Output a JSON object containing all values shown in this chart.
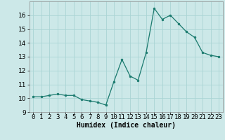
{
  "x": [
    0,
    1,
    2,
    3,
    4,
    5,
    6,
    7,
    8,
    9,
    10,
    11,
    12,
    13,
    14,
    15,
    16,
    17,
    18,
    19,
    20,
    21,
    22,
    23
  ],
  "y": [
    10.1,
    10.1,
    10.2,
    10.3,
    10.2,
    10.2,
    9.9,
    9.8,
    9.7,
    9.5,
    11.2,
    12.8,
    11.6,
    11.3,
    13.3,
    16.5,
    15.7,
    16.0,
    15.4,
    14.8,
    14.4,
    13.3,
    13.1,
    13.0
  ],
  "xlabel": "Humidex (Indice chaleur)",
  "xlim": [
    -0.5,
    23.5
  ],
  "ylim": [
    9.0,
    17.0
  ],
  "yticks": [
    9,
    10,
    11,
    12,
    13,
    14,
    15,
    16
  ],
  "xticks": [
    0,
    1,
    2,
    3,
    4,
    5,
    6,
    7,
    8,
    9,
    10,
    11,
    12,
    13,
    14,
    15,
    16,
    17,
    18,
    19,
    20,
    21,
    22,
    23
  ],
  "line_color": "#1a7a6e",
  "marker_color": "#1a7a6e",
  "bg_color": "#cce8e8",
  "grid_color": "#aad4d4",
  "xlabel_fontsize": 7,
  "tick_fontsize": 6.5
}
